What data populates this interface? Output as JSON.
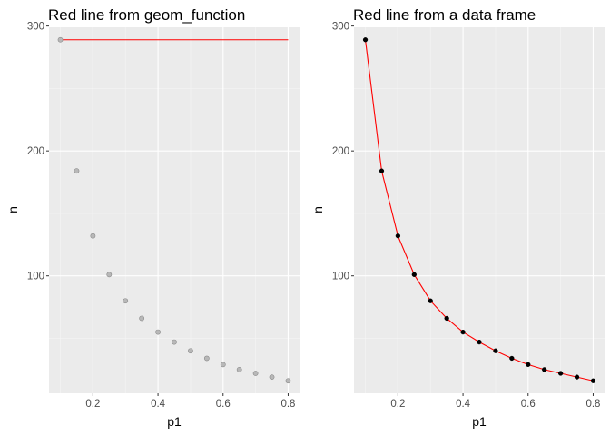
{
  "colors": {
    "panel_bg": "#ebebeb",
    "grid_major": "#ffffff",
    "grid_minor": "#f5f5f5",
    "tick_text": "#4d4d4d",
    "red_line": "#ff0000"
  },
  "chart_data": [
    {
      "type": "scatter",
      "title": "Red line from geom_function",
      "xlabel": "p1",
      "ylabel": "n",
      "xlim": [
        0.065,
        0.835
      ],
      "ylim": [
        6,
        299
      ],
      "xticks": [
        0.2,
        0.4,
        0.6,
        0.8
      ],
      "xtick_labels": [
        "0.2",
        "0.4",
        "0.6",
        "0.8"
      ],
      "yticks": [
        100,
        200,
        300
      ],
      "ytick_labels": [
        "100",
        "200",
        "300"
      ],
      "grid": true,
      "points": {
        "x": [
          0.1,
          0.15,
          0.2,
          0.25,
          0.3,
          0.35,
          0.4,
          0.45,
          0.5,
          0.55,
          0.6,
          0.65,
          0.7,
          0.75,
          0.8
        ],
        "y": [
          289,
          184,
          132,
          101,
          80,
          66,
          55,
          47,
          40,
          34,
          29,
          25,
          22,
          19,
          16
        ],
        "style": "faded-gray"
      },
      "line": {
        "x": [
          0.1,
          0.8
        ],
        "y": [
          289,
          289
        ],
        "color": "#ff0000"
      }
    },
    {
      "type": "line",
      "title": "Red line from a data frame",
      "xlabel": "p1",
      "ylabel": "n",
      "xlim": [
        0.065,
        0.835
      ],
      "ylim": [
        6,
        299
      ],
      "xticks": [
        0.2,
        0.4,
        0.6,
        0.8
      ],
      "xtick_labels": [
        "0.2",
        "0.4",
        "0.6",
        "0.8"
      ],
      "yticks": [
        100,
        200,
        300
      ],
      "ytick_labels": [
        "100",
        "200",
        "300"
      ],
      "grid": true,
      "points": {
        "x": [
          0.1,
          0.15,
          0.2,
          0.25,
          0.3,
          0.35,
          0.4,
          0.45,
          0.5,
          0.55,
          0.6,
          0.65,
          0.7,
          0.75,
          0.8
        ],
        "y": [
          289,
          184,
          132,
          101,
          80,
          66,
          55,
          47,
          40,
          34,
          29,
          25,
          22,
          19,
          16
        ],
        "style": "solid-black"
      },
      "line": {
        "x": [
          0.1,
          0.15,
          0.2,
          0.25,
          0.3,
          0.35,
          0.4,
          0.45,
          0.5,
          0.55,
          0.6,
          0.65,
          0.7,
          0.75,
          0.8
        ],
        "y": [
          289,
          184,
          132,
          101,
          80,
          66,
          55,
          47,
          40,
          34,
          29,
          25,
          22,
          19,
          16
        ],
        "color": "#ff0000"
      }
    }
  ]
}
